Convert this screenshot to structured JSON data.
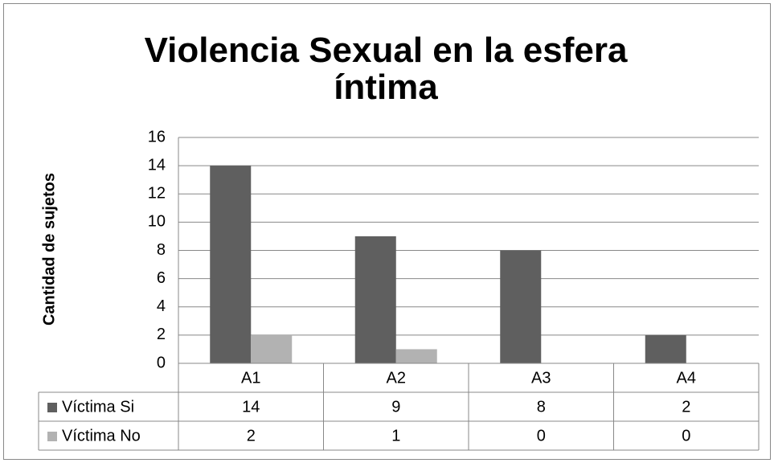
{
  "chart_data": {
    "type": "bar",
    "title": "Violencia Sexual en la esfera íntima",
    "y_label": "Cantidad de sujetos",
    "categories": [
      "A1",
      "A2",
      "A3",
      "A4"
    ],
    "series": [
      {
        "name": "Víctima Si",
        "color": "#5f5f5f",
        "values": [
          14,
          9,
          8,
          2
        ]
      },
      {
        "name": "Víctima No",
        "color": "#b2b2b2",
        "values": [
          2,
          1,
          0,
          0
        ]
      }
    ],
    "ylim": [
      0,
      16
    ],
    "yticks": [
      0,
      2,
      4,
      6,
      8,
      10,
      12,
      14,
      16
    ],
    "grid": true,
    "data_table": true
  }
}
